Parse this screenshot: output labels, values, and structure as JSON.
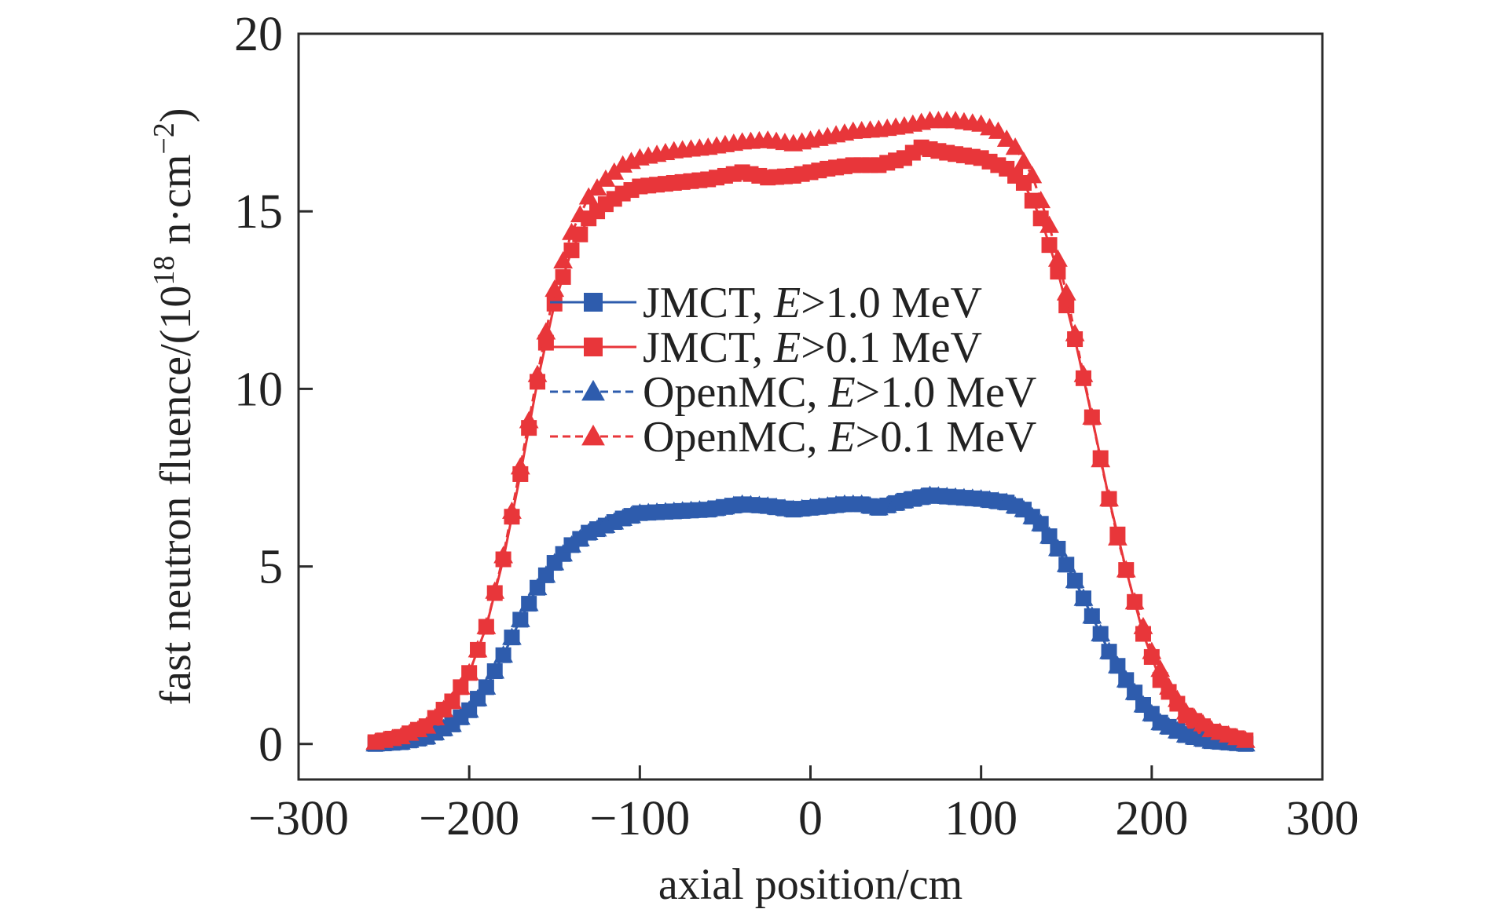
{
  "chart_data": {
    "type": "line",
    "title": "",
    "xlabel": "axial position/cm",
    "ylabel": {
      "prefix": "fast neutron fluence/(10",
      "sup1": "18",
      "mid": " n·cm",
      "sup2": "−2",
      "suffix": ")"
    },
    "xlim": [
      -300,
      300
    ],
    "ylim": [
      -1,
      20
    ],
    "xticks": [
      -300,
      -200,
      -100,
      0,
      100,
      200,
      300
    ],
    "xtick_labels": [
      "−300",
      "−200",
      "−100",
      "0",
      "100",
      "200",
      "300"
    ],
    "yticks": [
      0,
      5,
      10,
      15,
      20
    ],
    "ytick_labels": [
      "0",
      "5",
      "10",
      "15",
      "20"
    ],
    "grid": false,
    "legend_placement": "center",
    "x_samples": {
      "start": -255,
      "end": 255,
      "step": 5
    },
    "profile_anchors": {
      "high_energy": [
        [
          -255,
          0
        ],
        [
          -240,
          0.05
        ],
        [
          -225,
          0.2
        ],
        [
          -210,
          0.55
        ],
        [
          -200,
          0.95
        ],
        [
          -190,
          1.6
        ],
        [
          -180,
          2.5
        ],
        [
          -170,
          3.5
        ],
        [
          -160,
          4.4
        ],
        [
          -150,
          5.1
        ],
        [
          -140,
          5.6
        ],
        [
          -130,
          5.95
        ],
        [
          -120,
          6.15
        ],
        [
          -110,
          6.35
        ],
        [
          -100,
          6.5
        ],
        [
          -80,
          6.55
        ],
        [
          -60,
          6.6
        ],
        [
          -40,
          6.75
        ],
        [
          -25,
          6.7
        ],
        [
          -10,
          6.6
        ],
        [
          10,
          6.7
        ],
        [
          20,
          6.75
        ],
        [
          30,
          6.75
        ],
        [
          40,
          6.65
        ],
        [
          55,
          6.85
        ],
        [
          70,
          7.0
        ],
        [
          85,
          6.95
        ],
        [
          100,
          6.9
        ],
        [
          115,
          6.8
        ],
        [
          125,
          6.6
        ],
        [
          135,
          6.2
        ],
        [
          145,
          5.5
        ],
        [
          155,
          4.6
        ],
        [
          165,
          3.6
        ],
        [
          175,
          2.6
        ],
        [
          185,
          1.8
        ],
        [
          195,
          1.1
        ],
        [
          205,
          0.6
        ],
        [
          220,
          0.25
        ],
        [
          235,
          0.08
        ],
        [
          255,
          0.0
        ]
      ],
      "jmct_low_energy": [
        [
          -255,
          0.05
        ],
        [
          -240,
          0.2
        ],
        [
          -225,
          0.5
        ],
        [
          -210,
          1.2
        ],
        [
          -200,
          2.0
        ],
        [
          -190,
          3.3
        ],
        [
          -180,
          5.2
        ],
        [
          -170,
          7.6
        ],
        [
          -160,
          10.2
        ],
        [
          -150,
          12.4
        ],
        [
          -140,
          13.9
        ],
        [
          -130,
          14.8
        ],
        [
          -120,
          15.2
        ],
        [
          -110,
          15.5
        ],
        [
          -100,
          15.7
        ],
        [
          -80,
          15.8
        ],
        [
          -60,
          15.9
        ],
        [
          -40,
          16.1
        ],
        [
          -25,
          15.95
        ],
        [
          -10,
          16.0
        ],
        [
          10,
          16.2
        ],
        [
          25,
          16.3
        ],
        [
          40,
          16.3
        ],
        [
          55,
          16.5
        ],
        [
          65,
          16.8
        ],
        [
          80,
          16.65
        ],
        [
          100,
          16.5
        ],
        [
          115,
          16.2
        ],
        [
          125,
          15.8
        ],
        [
          135,
          14.8
        ],
        [
          145,
          13.3
        ],
        [
          155,
          11.4
        ],
        [
          165,
          9.2
        ],
        [
          175,
          6.9
        ],
        [
          185,
          4.9
        ],
        [
          195,
          3.1
        ],
        [
          205,
          1.8
        ],
        [
          220,
          0.8
        ],
        [
          235,
          0.35
        ],
        [
          255,
          0.1
        ]
      ],
      "openmc_low_energy": [
        [
          -255,
          0.05
        ],
        [
          -240,
          0.2
        ],
        [
          -225,
          0.5
        ],
        [
          -210,
          1.2
        ],
        [
          -200,
          2.0
        ],
        [
          -190,
          3.3
        ],
        [
          -180,
          5.3
        ],
        [
          -170,
          7.8
        ],
        [
          -160,
          10.4
        ],
        [
          -150,
          12.8
        ],
        [
          -140,
          14.4
        ],
        [
          -130,
          15.4
        ],
        [
          -120,
          15.9
        ],
        [
          -110,
          16.3
        ],
        [
          -100,
          16.5
        ],
        [
          -80,
          16.7
        ],
        [
          -60,
          16.8
        ],
        [
          -40,
          16.95
        ],
        [
          -25,
          17.0
        ],
        [
          -10,
          16.9
        ],
        [
          10,
          17.1
        ],
        [
          25,
          17.25
        ],
        [
          40,
          17.3
        ],
        [
          55,
          17.4
        ],
        [
          70,
          17.55
        ],
        [
          85,
          17.55
        ],
        [
          100,
          17.45
        ],
        [
          110,
          17.25
        ],
        [
          120,
          16.8
        ],
        [
          130,
          16.0
        ],
        [
          140,
          14.6
        ],
        [
          150,
          12.7
        ],
        [
          160,
          10.4
        ],
        [
          170,
          8.0
        ],
        [
          180,
          5.8
        ],
        [
          190,
          4.0
        ],
        [
          200,
          2.6
        ],
        [
          210,
          1.6
        ],
        [
          220,
          0.9
        ],
        [
          235,
          0.4
        ],
        [
          255,
          0.1
        ]
      ]
    },
    "series": [
      {
        "name": "JMCT, E>1.0 MeV",
        "name_plain": "JMCT, ",
        "name_italic": "E",
        "name_rest": ">1.0 MeV",
        "marker": "square",
        "line_style": "solid",
        "color": "#2e5cad",
        "profile": "high_energy"
      },
      {
        "name": "JMCT, E>0.1 MeV",
        "name_plain": "JMCT, ",
        "name_italic": "E",
        "name_rest": ">0.1 MeV",
        "marker": "square",
        "line_style": "solid",
        "color": "#e8363a",
        "profile": "jmct_low_energy"
      },
      {
        "name": "OpenMC, E>1.0 MeV",
        "name_plain": "OpenMC, ",
        "name_italic": "E",
        "name_rest": ">1.0 MeV",
        "marker": "triangle",
        "line_style": "dashed",
        "color": "#2e5cad",
        "profile": "high_energy"
      },
      {
        "name": "OpenMC, E>0.1 MeV",
        "name_plain": "OpenMC, ",
        "name_italic": "E",
        "name_rest": ">0.1 MeV",
        "marker": "triangle",
        "line_style": "dashed",
        "color": "#e8363a",
        "profile": "openmc_low_energy"
      }
    ]
  }
}
